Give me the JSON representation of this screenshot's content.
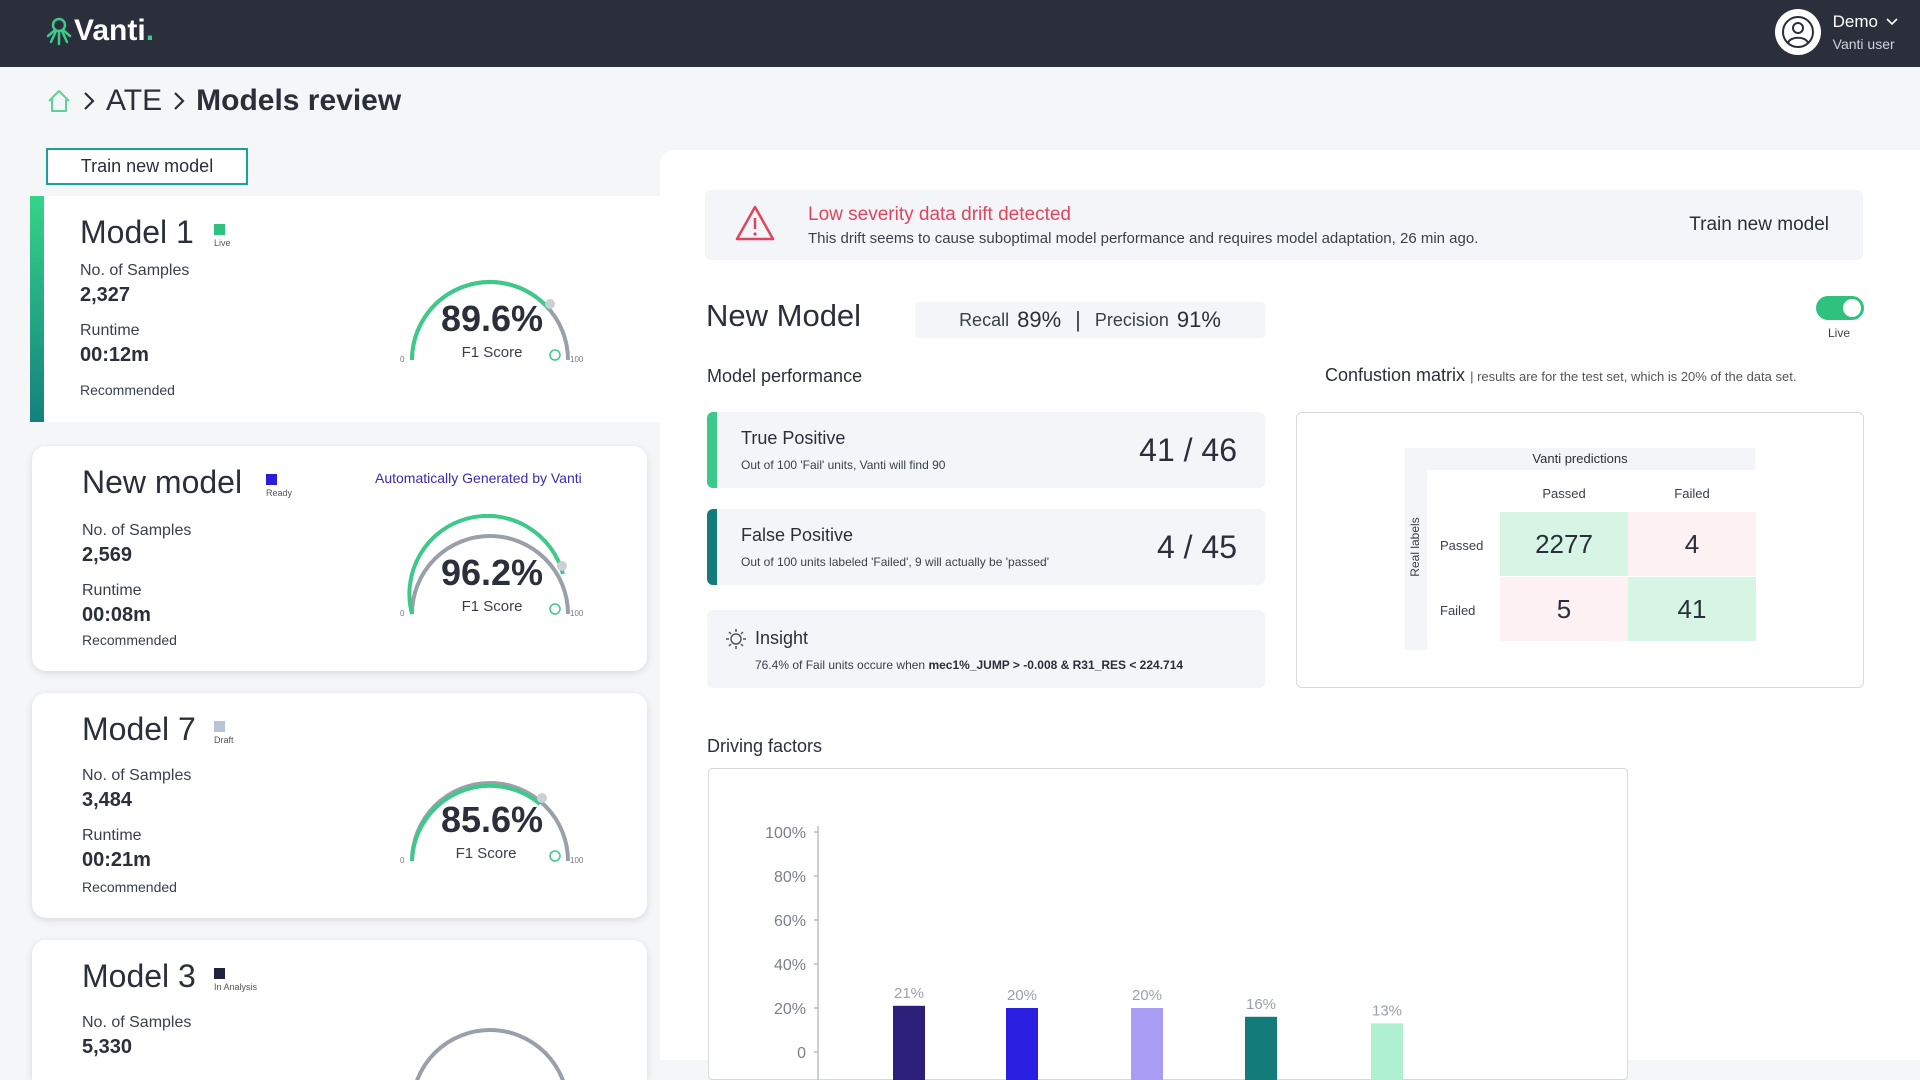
{
  "app": {
    "logo": "Vanti",
    "logo_dot": ".",
    "user_name": "Demo",
    "user_role": "Vanti user"
  },
  "breadcrumb": {
    "section": "ATE",
    "current": "Models review"
  },
  "train_new_model_label": "Train new model",
  "models": [
    {
      "name": "Model 1",
      "status": "Live",
      "status_color": "#2ec27e",
      "samples_label": "No. of Samples",
      "samples": "2,327",
      "runtime_label": "Runtime",
      "runtime": "00:12m",
      "recommended": "Recommended",
      "f1": "89.6%",
      "f1_value": 89.6,
      "f1_label": "F1 Score",
      "gauge_min": "0",
      "gauge_max": "100"
    },
    {
      "name": "New model",
      "status": "Ready",
      "status_color": "#2a1fd9",
      "auto_label": "Automatically Generated by Vanti",
      "samples_label": "No. of Samples",
      "samples": "2,569",
      "runtime_label": "Runtime",
      "runtime": "00:08m",
      "recommended": "Recommended",
      "f1": "96.2%",
      "f1_value": 96.2,
      "f1_label": "F1 Score",
      "gauge_min": "0",
      "gauge_max": "100"
    },
    {
      "name": "Model 7",
      "status": "Draft",
      "status_color": "#b9c3da",
      "samples_label": "No. of Samples",
      "samples": "3,484",
      "runtime_label": "Runtime",
      "runtime": "00:21m",
      "recommended": "Recommended",
      "f1": "85.6%",
      "f1_value": 85.6,
      "f1_label": "F1 Score",
      "gauge_min": "0",
      "gauge_max": "100"
    },
    {
      "name": "Model 3",
      "status": "In Analysis",
      "status_color": "#1f2340",
      "samples_label": "No. of Samples",
      "samples": "5,330"
    }
  ],
  "alert": {
    "title": "Low severity data drift detected",
    "description": "This drift seems to cause suboptimal model performance and requires model adaptation, 26 min ago.",
    "action": "Train new model"
  },
  "new_model": {
    "title": "New Model",
    "recall_label": "Recall",
    "recall": "89%",
    "separator": "|",
    "precision_label": "Precision",
    "precision": "91%",
    "toggle_label": "Live"
  },
  "performance": {
    "title": "Model performance",
    "cards": [
      {
        "title": "True Positive",
        "desc": "Out of 100 'Fail' units, Vanti will find 90",
        "value": "41 / 46",
        "color": "#3ec88a"
      },
      {
        "title": "False Positive",
        "desc": "Out of 100 units labeled 'Failed', 9 will actually be 'passed'",
        "value": "4 / 45",
        "color": "#137c7a"
      }
    ]
  },
  "insight": {
    "title": "Insight",
    "desc_prefix": "76.4% of Fail units occure when ",
    "desc_rule": "mec1%_JUMP > -0.008 & R31_RES < 224.714"
  },
  "confusion": {
    "title": "Confustion matrix",
    "note": "| results are for the test set, which is 20% of the data set.",
    "pred_title": "Vanti predictions",
    "real_title": "Real labels",
    "cols": [
      "Passed",
      "Failed"
    ],
    "rows": [
      "Passed",
      "Failed"
    ],
    "cells": [
      "2277",
      "4",
      "5",
      "41"
    ]
  },
  "driving_factors": {
    "title": "Driving factors"
  },
  "chart_data": {
    "type": "bar",
    "ylim": [
      0,
      100
    ],
    "yticks": [
      "100%",
      "80%",
      "60%",
      "40%",
      "20%",
      "0"
    ],
    "values": [
      21,
      20,
      20,
      16,
      13
    ],
    "labels": [
      "21%",
      "20%",
      "20%",
      "16%",
      "13%"
    ],
    "colors": [
      "#2b1f7a",
      "#2a1fe0",
      "#a99cf5",
      "#137c7a",
      "#aef0cf"
    ]
  }
}
